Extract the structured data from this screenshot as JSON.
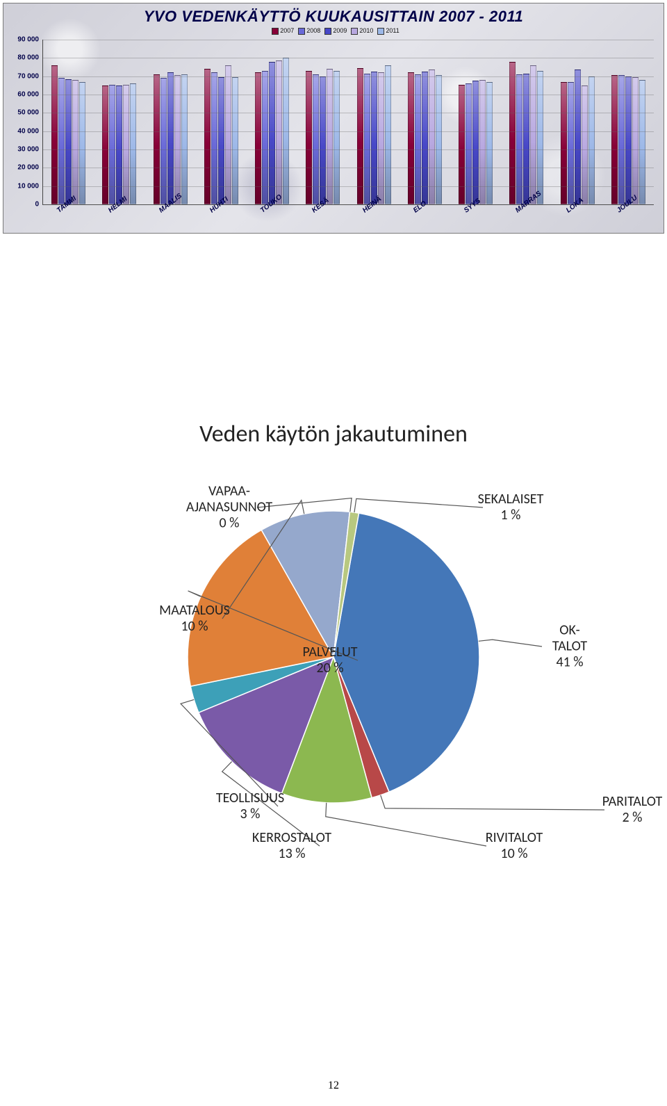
{
  "bar_chart": {
    "title": "YVO VEDENKÄYTTÖ KUUKAUSITTAIN 2007 - 2011",
    "years": [
      "2007",
      "2008",
      "2009",
      "2010",
      "2011"
    ],
    "year_colors": [
      "#880038",
      "#6a6ad8",
      "#4848c8",
      "#b8a8e0",
      "#9db8e8"
    ],
    "ylim": [
      0,
      90000
    ],
    "ytick_step": 10000,
    "yticks": [
      0,
      10000,
      20000,
      30000,
      40000,
      50000,
      60000,
      70000,
      80000,
      90000
    ],
    "axis_label_color": "#000048",
    "months": [
      "TAMMI",
      "HELMI",
      "MAALIS",
      "HUHTI",
      "TOUKO",
      "KESÄ",
      "HEINÄ",
      "ELO",
      "SYYS",
      "MARRAS",
      "LOKA",
      "JOULU"
    ],
    "data": {
      "TAMMI": [
        76000,
        69000,
        68500,
        68000,
        67000
      ],
      "HELMI": [
        65000,
        65500,
        65000,
        65500,
        66000
      ],
      "MAALIS": [
        71000,
        69000,
        72000,
        70500,
        71000
      ],
      "HUHTI": [
        74000,
        72000,
        69500,
        76000,
        69500
      ],
      "TOUKO": [
        72000,
        73000,
        78000,
        78500,
        80000
      ],
      "KESÄ": [
        73000,
        71000,
        70000,
        74000,
        73000
      ],
      "HEINÄ": [
        74500,
        71500,
        72500,
        72000,
        76000
      ],
      "ELO": [
        72000,
        71000,
        72500,
        73500,
        70500
      ],
      "SYYS": [
        65500,
        66000,
        67500,
        68000,
        67000
      ],
      "MARRAS": [
        78000,
        71000,
        71500,
        76000,
        73000
      ],
      "LOKA": [
        67000,
        67000,
        73500,
        65000,
        70000
      ],
      "JOULU": [
        70500,
        70500,
        70000,
        69500,
        68000
      ]
    }
  },
  "pie_chart": {
    "title": "Veden käytön jakautuminen",
    "slices": [
      {
        "label": "OK-TALOT",
        "pct": 41,
        "color": "#4477b8"
      },
      {
        "label": "PARITALOT",
        "pct": 2,
        "color": "#b84848"
      },
      {
        "label": "RIVITALOT",
        "pct": 10,
        "color": "#8cb850"
      },
      {
        "label": "KERROSTALOT",
        "pct": 13,
        "color": "#7a5aa8"
      },
      {
        "label": "TEOLLISUUS",
        "pct": 3,
        "color": "#3da0b8"
      },
      {
        "label": "PALVELUT",
        "pct": 20,
        "color": "#e08038"
      },
      {
        "label": "MAATALOUS",
        "pct": 10,
        "color": "#95a8cc"
      },
      {
        "label": "VAPAA-\nAJANASUNNOT",
        "pct": 0,
        "color": "#c8c8c8"
      },
      {
        "label": "SEKALAISET",
        "pct": 1,
        "color": "#b8c880"
      }
    ],
    "label_positions": {
      "OK-TALOT": [
        600,
        265
      ],
      "PARITALOT": [
        690,
        500
      ],
      "RIVITALOT": [
        520,
        552
      ],
      "KERROSTALOT": [
        200,
        552
      ],
      "TEOLLISUUS": [
        140,
        495
      ],
      "PALVELUT": [
        255,
        285
      ],
      "MAATALOUS": [
        60,
        225
      ],
      "VAPAA-\nAJANASUNNOT": [
        110,
        65
      ],
      "SEKALAISET": [
        515,
        65
      ]
    },
    "start_angle_deg": -80
  },
  "page_number": "12"
}
